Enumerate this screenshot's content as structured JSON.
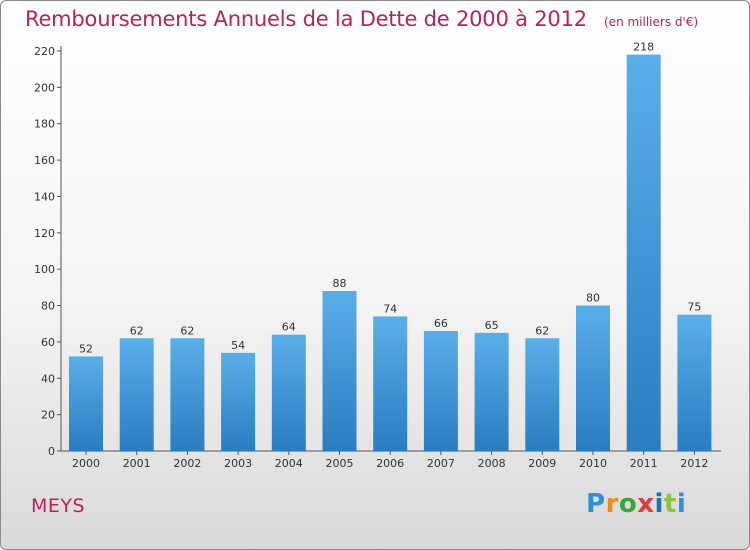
{
  "title": "Remboursements Annuels de la Dette de 2000 à 2012",
  "unit": "(en milliers d'€)",
  "town": "MEYS",
  "logo": {
    "letters": [
      "P",
      "r",
      "o",
      "x",
      "i",
      "t",
      "i"
    ],
    "colors": [
      "#2f8fd6",
      "#f08a1c",
      "#3aa63a",
      "#e23b3b",
      "#1f6fbf",
      "#8bc53f",
      "#2f8fd6"
    ]
  },
  "chart_data": {
    "type": "bar",
    "title": "Remboursements Annuels de la Dette de 2000 à 2012",
    "subtitle": "(en milliers d'€)",
    "categories": [
      "2000",
      "2001",
      "2002",
      "2003",
      "2004",
      "2005",
      "2006",
      "2007",
      "2008",
      "2009",
      "2010",
      "2011",
      "2012"
    ],
    "values": [
      52,
      62,
      62,
      54,
      64,
      88,
      74,
      66,
      65,
      62,
      80,
      218,
      75
    ],
    "ylim": [
      0,
      220
    ],
    "yticks": [
      0,
      20,
      40,
      60,
      80,
      100,
      120,
      140,
      160,
      180,
      200,
      220
    ],
    "grid": false,
    "bar_color": "#3c9ad9",
    "xlabel": "",
    "ylabel": ""
  }
}
